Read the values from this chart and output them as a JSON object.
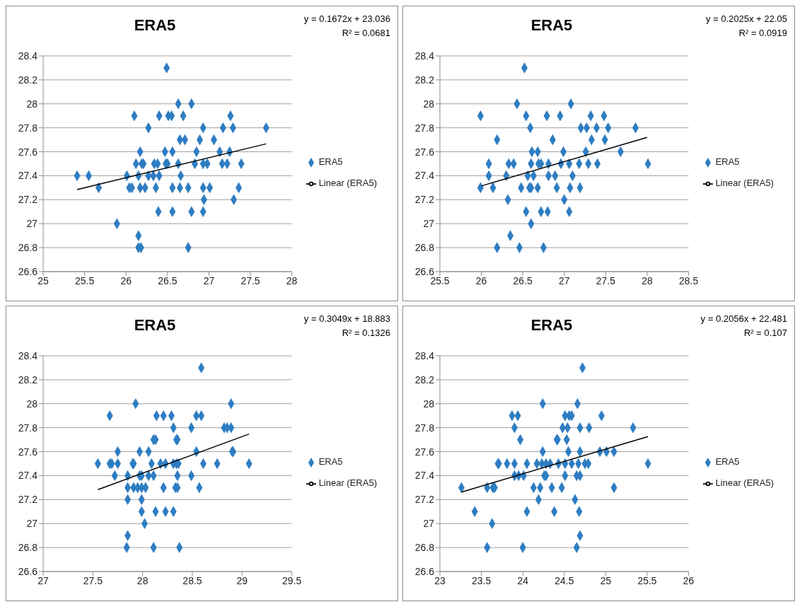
{
  "chart_data": [
    {
      "type": "scatter",
      "title": "ERA5",
      "annotations": [
        "y = 0.1672x + 23.036",
        "R² = 0.0681"
      ],
      "xlim": [
        25,
        28
      ],
      "xticks": [
        25,
        25.5,
        26,
        26.5,
        27,
        27.5,
        28
      ],
      "ylim": [
        26.6,
        28.4
      ],
      "yticks": [
        26.6,
        26.8,
        27,
        27.2,
        27.4,
        27.6,
        27.8,
        28,
        28.2,
        28.4
      ],
      "grid": "y",
      "legend": "right",
      "marker": "diamond",
      "series": [
        {
          "name": "ERA5",
          "color": "#2e7dc2",
          "x": [
            26.49,
            26.63,
            26.79,
            26.1,
            26.4,
            26.51,
            26.55,
            26.69,
            27.26,
            26.27,
            26.93,
            27.17,
            27.29,
            27.69,
            26.65,
            26.71,
            26.89,
            27.06,
            26.17,
            26.47,
            26.56,
            26.85,
            27.13,
            27.25,
            26.12,
            26.19,
            26.21,
            26.34,
            26.38,
            26.48,
            26.5,
            26.63,
            26.83,
            26.93,
            26.98,
            27.16,
            27.22,
            27.39,
            25.41,
            25.55,
            26.01,
            26.15,
            26.27,
            26.33,
            26.4,
            26.66,
            25.67,
            26.04,
            26.07,
            26.17,
            26.23,
            26.36,
            26.56,
            26.65,
            26.75,
            26.93,
            27.01,
            27.36,
            26.94,
            27.3,
            26.39,
            26.56,
            26.79,
            26.93,
            25.89,
            26.15,
            26.15,
            26.18,
            26.75
          ],
          "values": [
            28.3,
            28,
            28,
            27.9,
            27.9,
            27.9,
            27.9,
            27.9,
            27.9,
            27.8,
            27.8,
            27.8,
            27.8,
            27.8,
            27.7,
            27.7,
            27.7,
            27.7,
            27.6,
            27.6,
            27.6,
            27.6,
            27.6,
            27.6,
            27.5,
            27.5,
            27.5,
            27.5,
            27.5,
            27.5,
            27.5,
            27.5,
            27.5,
            27.5,
            27.5,
            27.5,
            27.5,
            27.5,
            27.4,
            27.4,
            27.4,
            27.4,
            27.4,
            27.4,
            27.4,
            27.4,
            27.3,
            27.3,
            27.3,
            27.3,
            27.3,
            27.3,
            27.3,
            27.3,
            27.3,
            27.3,
            27.3,
            27.3,
            27.2,
            27.2,
            27.1,
            27.1,
            27.1,
            27.1,
            27,
            26.9,
            26.8,
            26.8,
            26.8
          ]
        },
        {
          "name": "Linear (ERA5)",
          "type": "line",
          "marker": "none",
          "color": "#000000",
          "x": [
            25.41,
            27.69
          ],
          "values": [
            27.285,
            27.666
          ]
        }
      ]
    },
    {
      "type": "scatter",
      "title": "ERA5",
      "annotations": [
        "y = 0.2025x + 22.05",
        "R² = 0.0919"
      ],
      "xlim": [
        25.5,
        28.5
      ],
      "xticks": [
        25.5,
        26,
        26.5,
        27,
        27.5,
        28,
        28.5
      ],
      "ylim": [
        26.6,
        28.4
      ],
      "yticks": [
        26.6,
        26.8,
        27,
        27.2,
        27.4,
        27.6,
        27.8,
        28,
        28.2,
        28.4
      ],
      "grid": "y",
      "legend": "right",
      "marker": "diamond",
      "series": [
        {
          "name": "ERA5",
          "color": "#2e7dc2",
          "x": [
            26.52,
            26.43,
            27.08,
            25.99,
            26.54,
            26.79,
            26.95,
            27.32,
            27.48,
            26.59,
            27.2,
            27.27,
            27.39,
            27.53,
            27.86,
            26.19,
            26.86,
            27.33,
            27.49,
            26.61,
            26.68,
            26.99,
            27.26,
            27.68,
            26.09,
            26.33,
            26.39,
            26.6,
            26.69,
            26.72,
            26.81,
            26.96,
            27.06,
            27.18,
            27.29,
            27.4,
            28.01,
            26.09,
            26.3,
            26.56,
            26.63,
            26.81,
            26.89,
            27.1,
            25.99,
            26.14,
            26.48,
            26.58,
            26.6,
            26.68,
            26.91,
            27.07,
            27.19,
            26.32,
            27.0,
            26.54,
            26.72,
            26.8,
            27.06,
            26.6,
            26.35,
            26.19,
            26.46,
            26.75
          ],
          "values": [
            28.3,
            28,
            28,
            27.9,
            27.9,
            27.9,
            27.9,
            27.9,
            27.9,
            27.8,
            27.8,
            27.8,
            27.8,
            27.8,
            27.8,
            27.7,
            27.7,
            27.7,
            27.7,
            27.6,
            27.6,
            27.6,
            27.6,
            27.6,
            27.5,
            27.5,
            27.5,
            27.5,
            27.5,
            27.5,
            27.5,
            27.5,
            27.5,
            27.5,
            27.5,
            27.5,
            27.5,
            27.4,
            27.4,
            27.4,
            27.4,
            27.4,
            27.4,
            27.4,
            27.3,
            27.3,
            27.3,
            27.3,
            27.3,
            27.3,
            27.3,
            27.3,
            27.3,
            27.2,
            27.2,
            27.1,
            27.1,
            27.1,
            27.1,
            27,
            26.9,
            26.8,
            26.8,
            26.8
          ]
        },
        {
          "name": "Linear (ERA5)",
          "type": "line",
          "marker": "none",
          "color": "#000000",
          "x": [
            26.0,
            28.0
          ],
          "values": [
            27.315,
            27.72
          ]
        }
      ]
    },
    {
      "type": "scatter",
      "title": "ERA5",
      "annotations": [
        "y = 0.3049x + 18.883",
        "R² = 0.1326"
      ],
      "xlim": [
        27,
        29.5
      ],
      "xticks": [
        27,
        27.5,
        28,
        28.5,
        29,
        29.5
      ],
      "ylim": [
        26.6,
        28.4
      ],
      "yticks": [
        26.6,
        26.8,
        27,
        27.2,
        27.4,
        27.6,
        27.8,
        28,
        28.2,
        28.4
      ],
      "grid": "y",
      "legend": "right",
      "marker": "diamond",
      "series": [
        {
          "name": "ERA5",
          "color": "#2e7dc2",
          "x": [
            28.59,
            27.93,
            28.89,
            27.67,
            28.14,
            28.21,
            28.29,
            28.54,
            28.59,
            28.31,
            28.49,
            28.82,
            28.85,
            28.89,
            28.11,
            28.13,
            28.34,
            28.35,
            27.75,
            27.97,
            28.06,
            28.54,
            28.9,
            28.91,
            27.55,
            27.67,
            27.69,
            27.75,
            27.9,
            27.91,
            28.09,
            28.18,
            28.23,
            28.31,
            28.34,
            28.36,
            28.61,
            28.75,
            29.07,
            27.72,
            27.85,
            27.97,
            27.99,
            28.06,
            28.11,
            28.35,
            28.49,
            27.85,
            27.91,
            27.95,
            27.99,
            28.03,
            28.21,
            28.33,
            28.35,
            28.57,
            27.85,
            27.99,
            27.99,
            28.13,
            28.23,
            28.31,
            28.02,
            27.85,
            27.84,
            28.11,
            28.37
          ],
          "values": [
            28.3,
            28,
            28,
            27.9,
            27.9,
            27.9,
            27.9,
            27.9,
            27.9,
            27.8,
            27.8,
            27.8,
            27.8,
            27.8,
            27.7,
            27.7,
            27.7,
            27.7,
            27.6,
            27.6,
            27.6,
            27.6,
            27.6,
            27.6,
            27.5,
            27.5,
            27.5,
            27.5,
            27.5,
            27.5,
            27.5,
            27.5,
            27.5,
            27.5,
            27.5,
            27.5,
            27.5,
            27.5,
            27.5,
            27.4,
            27.4,
            27.4,
            27.4,
            27.4,
            27.4,
            27.4,
            27.4,
            27.3,
            27.3,
            27.3,
            27.3,
            27.3,
            27.3,
            27.3,
            27.3,
            27.3,
            27.2,
            27.2,
            27.1,
            27.1,
            27.1,
            27.1,
            27,
            26.9,
            26.8,
            26.8,
            26.8
          ]
        },
        {
          "name": "Linear (ERA5)",
          "type": "line",
          "marker": "none",
          "color": "#000000",
          "x": [
            27.55,
            29.07
          ],
          "values": [
            27.283,
            27.747
          ]
        }
      ]
    },
    {
      "type": "scatter",
      "title": "ERA5",
      "annotations": [
        "y = 0.2056x + 22.481",
        "R² = 0.107"
      ],
      "xlim": [
        23,
        26
      ],
      "xticks": [
        23,
        23.5,
        24,
        24.5,
        25,
        25.5,
        26
      ],
      "ylim": [
        26.6,
        28.4
      ],
      "yticks": [
        26.6,
        26.8,
        27,
        27.2,
        27.4,
        27.6,
        27.8,
        28,
        28.2,
        28.4
      ],
      "grid": "y",
      "legend": "right",
      "marker": "diamond",
      "series": [
        {
          "name": "ERA5",
          "color": "#2e7dc2",
          "x": [
            24.72,
            24.24,
            24.66,
            23.87,
            23.94,
            24.51,
            24.56,
            24.59,
            24.95,
            23.9,
            24.48,
            24.54,
            24.69,
            24.8,
            25.33,
            23.97,
            24.41,
            24.42,
            24.53,
            24.24,
            24.55,
            24.69,
            24.93,
            25.01,
            25.1,
            23.7,
            23.71,
            23.81,
            23.9,
            24.05,
            24.17,
            24.23,
            24.28,
            24.33,
            24.43,
            24.51,
            24.59,
            24.67,
            24.75,
            24.79,
            25.51,
            23.9,
            23.95,
            24.01,
            24.26,
            24.28,
            24.51,
            24.65,
            24.69,
            23.26,
            23.57,
            23.64,
            23.66,
            24.13,
            24.21,
            24.35,
            24.47,
            25.1,
            24.19,
            24.63,
            23.42,
            24.05,
            24.38,
            24.68,
            23.63,
            24.69,
            23.57,
            24.0,
            24.65
          ],
          "values": [
            28.3,
            28,
            28,
            27.9,
            27.9,
            27.9,
            27.9,
            27.9,
            27.9,
            27.8,
            27.8,
            27.8,
            27.8,
            27.8,
            27.8,
            27.7,
            27.7,
            27.7,
            27.7,
            27.6,
            27.6,
            27.6,
            27.6,
            27.6,
            27.6,
            27.5,
            27.5,
            27.5,
            27.5,
            27.5,
            27.5,
            27.5,
            27.5,
            27.5,
            27.5,
            27.5,
            27.5,
            27.5,
            27.5,
            27.5,
            27.5,
            27.4,
            27.4,
            27.4,
            27.4,
            27.4,
            27.4,
            27.4,
            27.4,
            27.3,
            27.3,
            27.3,
            27.3,
            27.3,
            27.3,
            27.3,
            27.3,
            27.3,
            27.2,
            27.2,
            27.1,
            27.1,
            27.1,
            27.1,
            27,
            26.9,
            26.8,
            26.8,
            26.8
          ]
        },
        {
          "name": "Linear (ERA5)",
          "type": "line",
          "marker": "none",
          "color": "#000000",
          "x": [
            23.26,
            25.51
          ],
          "values": [
            27.263,
            27.726
          ]
        }
      ]
    }
  ]
}
